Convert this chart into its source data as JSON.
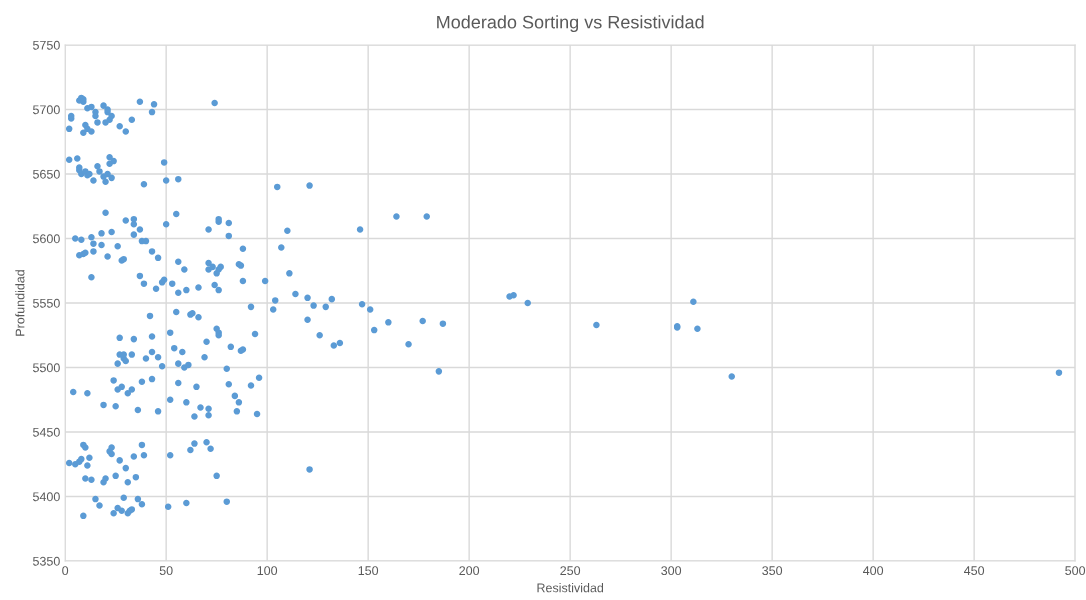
{
  "chart_data": {
    "type": "scatter",
    "title": "Moderado Sorting vs Resistividad",
    "xlabel": "Resistividad",
    "ylabel": "Profundidad",
    "xlim": [
      0,
      500
    ],
    "xticks": [
      0,
      50,
      100,
      150,
      200,
      250,
      300,
      350,
      400,
      450,
      500
    ],
    "ylim": [
      5350,
      5750
    ],
    "yticks": [
      5350,
      5400,
      5450,
      5500,
      5550,
      5600,
      5650,
      5700,
      5750
    ],
    "grid": true,
    "marker": "circle",
    "series": [
      {
        "color": "#5b9bd5",
        "x": [
          3,
          3,
          2,
          7,
          8,
          9,
          9,
          11,
          13,
          10,
          11,
          9,
          13,
          15,
          15,
          16,
          19,
          21,
          22,
          21,
          20,
          23,
          27,
          30,
          33,
          37,
          43,
          44,
          74,
          2,
          6,
          7,
          8,
          7,
          10,
          11,
          12,
          14,
          16,
          17,
          19,
          20,
          22,
          22,
          24,
          21,
          23,
          39,
          49,
          50,
          56,
          105,
          121,
          5,
          8,
          7,
          9,
          10,
          13,
          14,
          14,
          13,
          18,
          18,
          20,
          21,
          23,
          26,
          28,
          29,
          30,
          34,
          34,
          34,
          37,
          38,
          40,
          37,
          39,
          43,
          46,
          50,
          45,
          48,
          49,
          53,
          55,
          56,
          56,
          59,
          60,
          66,
          71,
          71,
          71,
          73,
          74,
          76,
          76,
          76,
          75,
          77,
          76,
          81,
          81,
          86,
          87,
          88,
          88,
          92,
          99,
          103,
          104,
          107,
          110,
          111,
          114,
          120,
          120,
          123,
          126,
          129,
          132,
          133,
          136,
          146,
          147,
          151,
          153,
          160,
          164,
          170,
          177,
          179,
          187,
          185,
          220,
          222,
          229,
          263,
          303,
          303,
          311,
          313,
          330,
          492,
          121,
          4,
          11,
          19,
          24,
          25,
          26,
          27,
          27,
          26,
          28,
          29,
          30,
          29,
          31,
          33,
          34,
          33,
          36,
          38,
          40,
          42,
          43,
          43,
          43,
          46,
          46,
          48,
          52,
          52,
          54,
          55,
          56,
          56,
          58,
          59,
          60,
          61,
          62,
          63,
          64,
          65,
          66,
          67,
          69,
          70,
          71,
          71,
          75,
          76,
          76,
          80,
          81,
          82,
          84,
          85,
          86,
          87,
          88,
          92,
          94,
          95,
          96,
          2,
          5,
          7,
          8,
          9,
          10,
          10,
          11,
          12,
          13,
          15,
          17,
          19,
          20,
          22,
          23,
          23,
          24,
          25,
          26,
          27,
          28,
          29,
          30,
          31,
          31,
          32,
          33,
          34,
          35,
          36,
          38,
          38,
          39,
          51,
          52,
          60,
          62,
          64,
          70,
          72,
          75,
          80,
          9
        ],
        "values": [
          5693,
          5695,
          5685,
          5707,
          5709,
          5708,
          5706,
          5701,
          5702,
          5688,
          5685,
          5682,
          5683,
          5698,
          5695,
          5690,
          5703,
          5698,
          5692,
          5700,
          5690,
          5695,
          5687,
          5683,
          5692,
          5706,
          5698,
          5704,
          5705,
          5661,
          5662,
          5655,
          5650,
          5653,
          5652,
          5649,
          5650,
          5645,
          5656,
          5652,
          5648,
          5644,
          5663,
          5658,
          5660,
          5650,
          5647,
          5642,
          5659,
          5645,
          5646,
          5640,
          5641,
          5600,
          5599,
          5587,
          5588,
          5589,
          5601,
          5596,
          5590,
          5570,
          5604,
          5595,
          5620,
          5586,
          5605,
          5594,
          5583,
          5584,
          5614,
          5615,
          5611,
          5603,
          5607,
          5598,
          5598,
          5571,
          5565,
          5590,
          5585,
          5611,
          5561,
          5566,
          5568,
          5565,
          5619,
          5582,
          5558,
          5576,
          5560,
          5562,
          5607,
          5576,
          5581,
          5578,
          5564,
          5613,
          5615,
          5560,
          5573,
          5578,
          5576,
          5612,
          5602,
          5580,
          5579,
          5592,
          5567,
          5547,
          5567,
          5545,
          5552,
          5593,
          5606,
          5573,
          5557,
          5537,
          5554,
          5548,
          5525,
          5547,
          5553,
          5517,
          5519,
          5607,
          5549,
          5545,
          5529,
          5535,
          5617,
          5518,
          5536,
          5617,
          5534,
          5497,
          5555,
          5556,
          5550,
          5533,
          5532,
          5531,
          5551,
          5530,
          5493,
          5496,
          5421,
          5481,
          5480,
          5471,
          5490,
          5470,
          5503,
          5523,
          5510,
          5483,
          5485,
          5507,
          5505,
          5510,
          5480,
          5483,
          5522,
          5510,
          5467,
          5489,
          5507,
          5540,
          5524,
          5512,
          5491,
          5466,
          5508,
          5501,
          5527,
          5475,
          5515,
          5543,
          5503,
          5488,
          5512,
          5500,
          5473,
          5502,
          5541,
          5542,
          5462,
          5485,
          5539,
          5469,
          5508,
          5520,
          5468,
          5463,
          5530,
          5527,
          5525,
          5499,
          5487,
          5516,
          5478,
          5466,
          5473,
          5513,
          5514,
          5486,
          5526,
          5464,
          5492,
          5426,
          5425,
          5427,
          5429,
          5440,
          5438,
          5414,
          5424,
          5430,
          5413,
          5398,
          5393,
          5411,
          5414,
          5435,
          5433,
          5438,
          5387,
          5416,
          5391,
          5428,
          5389,
          5399,
          5422,
          5387,
          5411,
          5389,
          5390,
          5431,
          5415,
          5398,
          5394,
          5440,
          5432,
          5392,
          5432,
          5395,
          5436,
          5441,
          5442,
          5437,
          5416,
          5396,
          5385
        ]
      }
    ]
  }
}
